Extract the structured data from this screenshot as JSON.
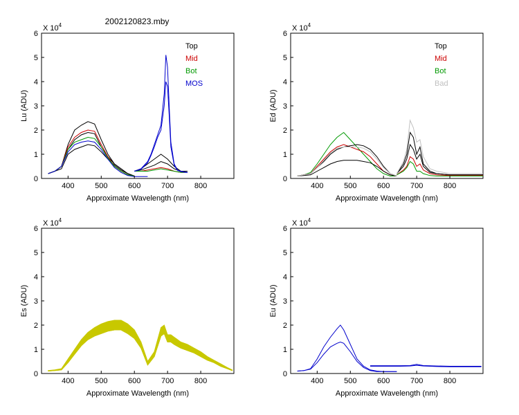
{
  "page_title": "2002120823.mby",
  "chart_data": [
    {
      "id": "lu",
      "type": "line",
      "ylabel": "Lu (ADU)",
      "xlabel": "Approximate Wavelength (nm)",
      "exponent_label": "X 10",
      "exponent_power": "4",
      "xlim": [
        320,
        900
      ],
      "ylim": [
        0,
        6
      ],
      "xticks": [
        400,
        500,
        600,
        700,
        800
      ],
      "yticks": [
        0,
        1,
        2,
        3,
        4,
        5,
        6
      ],
      "legend": [
        {
          "label": "Top",
          "color": "#000000"
        },
        {
          "label": "Mid",
          "color": "#cc0000"
        },
        {
          "label": "Bot",
          "color": "#009900"
        },
        {
          "label": "MOS",
          "color": "#0000cc"
        }
      ],
      "series": [
        {
          "color": "#000000",
          "x": [
            340,
            360,
            380,
            400,
            420,
            440,
            460,
            480,
            500,
            520,
            540,
            560,
            580,
            600
          ],
          "y": [
            0.2,
            0.3,
            0.5,
            1.4,
            2.0,
            2.2,
            2.35,
            2.25,
            1.6,
            1.0,
            0.6,
            0.4,
            0.2,
            0.1
          ]
        },
        {
          "color": "#000000",
          "x": [
            340,
            360,
            380,
            400,
            420,
            440,
            460,
            480,
            500,
            520,
            540,
            560,
            580,
            600
          ],
          "y": [
            0.2,
            0.3,
            0.5,
            1.2,
            1.6,
            1.8,
            1.9,
            1.85,
            1.3,
            0.9,
            0.6,
            0.4,
            0.2,
            0.1
          ]
        },
        {
          "color": "#000000",
          "x": [
            340,
            360,
            380,
            400,
            420,
            440,
            460,
            480,
            500,
            520,
            540,
            560,
            580,
            600
          ],
          "y": [
            0.2,
            0.3,
            0.4,
            1.0,
            1.2,
            1.3,
            1.4,
            1.35,
            1.1,
            0.8,
            0.55,
            0.35,
            0.2,
            0.1
          ]
        },
        {
          "color": "#cc0000",
          "x": [
            340,
            360,
            380,
            400,
            420,
            440,
            460,
            480,
            500,
            520,
            540,
            560,
            580,
            600
          ],
          "y": [
            0.2,
            0.3,
            0.5,
            1.3,
            1.7,
            1.9,
            2.0,
            1.95,
            1.4,
            0.9,
            0.5,
            0.3,
            0.15,
            0.1
          ]
        },
        {
          "color": "#009900",
          "x": [
            340,
            360,
            380,
            400,
            420,
            440,
            460,
            480,
            500,
            520,
            540,
            560,
            580,
            600
          ],
          "y": [
            0.2,
            0.3,
            0.5,
            1.2,
            1.5,
            1.6,
            1.7,
            1.65,
            1.3,
            0.85,
            0.5,
            0.3,
            0.15,
            0.1
          ]
        },
        {
          "color": "#0000cc",
          "x": [
            340,
            360,
            380,
            400,
            420,
            440,
            460,
            480,
            500,
            520,
            540,
            560,
            580,
            600,
            620,
            640
          ],
          "y": [
            0.2,
            0.3,
            0.5,
            1.1,
            1.4,
            1.5,
            1.55,
            1.5,
            1.2,
            0.8,
            0.45,
            0.25,
            0.12,
            0.08,
            0.08,
            0.08
          ]
        },
        {
          "color": "#000000",
          "x": [
            600,
            620,
            640,
            660,
            680,
            700,
            720,
            740,
            760
          ],
          "y": [
            0.3,
            0.4,
            0.6,
            0.8,
            1.0,
            0.8,
            0.5,
            0.3,
            0.3
          ]
        },
        {
          "color": "#000000",
          "x": [
            600,
            620,
            640,
            660,
            680,
            700,
            720,
            740,
            760
          ],
          "y": [
            0.3,
            0.35,
            0.45,
            0.55,
            0.7,
            0.6,
            0.4,
            0.3,
            0.3
          ]
        },
        {
          "color": "#cc0000",
          "x": [
            600,
            620,
            640,
            660,
            680,
            700,
            720,
            740,
            760
          ],
          "y": [
            0.3,
            0.3,
            0.35,
            0.4,
            0.45,
            0.4,
            0.3,
            0.25,
            0.25
          ]
        },
        {
          "color": "#009900",
          "x": [
            600,
            620,
            640,
            660,
            680,
            700,
            720,
            740,
            760
          ],
          "y": [
            0.3,
            0.3,
            0.3,
            0.35,
            0.4,
            0.35,
            0.3,
            0.25,
            0.25
          ]
        },
        {
          "color": "#0000cc",
          "x": [
            600,
            610,
            620,
            640,
            650,
            660,
            670,
            680,
            690,
            695,
            700,
            705,
            710,
            720,
            730,
            740,
            760
          ],
          "y": [
            0.3,
            0.35,
            0.4,
            0.7,
            1.0,
            1.4,
            1.8,
            2.2,
            3.5,
            5.1,
            4.6,
            3.0,
            1.5,
            0.6,
            0.35,
            0.3,
            0.25
          ]
        },
        {
          "color": "#0000cc",
          "x": [
            600,
            610,
            620,
            640,
            650,
            660,
            670,
            680,
            690,
            695,
            700,
            705,
            710,
            720,
            730,
            740,
            760
          ],
          "y": [
            0.3,
            0.33,
            0.38,
            0.65,
            0.95,
            1.3,
            1.7,
            2.0,
            3.0,
            4.0,
            3.8,
            2.6,
            1.3,
            0.55,
            0.33,
            0.28,
            0.24
          ]
        }
      ]
    },
    {
      "id": "ed",
      "type": "line",
      "ylabel": "Ed (ADU)",
      "xlabel": "Approximate Wavelength (nm)",
      "exponent_label": "X 10",
      "exponent_power": "4",
      "xlim": [
        320,
        900
      ],
      "ylim": [
        0,
        6
      ],
      "xticks": [
        400,
        500,
        600,
        700,
        800
      ],
      "yticks": [
        0,
        1,
        2,
        3,
        4,
        5,
        6
      ],
      "legend": [
        {
          "label": "Top",
          "color": "#000000"
        },
        {
          "label": "Mid",
          "color": "#cc0000"
        },
        {
          "label": "Bot",
          "color": "#009900"
        },
        {
          "label": "Bad",
          "color": "#c0c0c0"
        }
      ],
      "series": [
        {
          "color": "#009900",
          "x": [
            340,
            360,
            380,
            400,
            420,
            440,
            460,
            480,
            500,
            520,
            540,
            560,
            580,
            600,
            620,
            640
          ],
          "y": [
            0.1,
            0.15,
            0.25,
            0.6,
            1.0,
            1.4,
            1.7,
            1.9,
            1.6,
            1.3,
            1.0,
            0.7,
            0.4,
            0.2,
            0.1,
            0.1
          ]
        },
        {
          "color": "#cc0000",
          "x": [
            340,
            360,
            380,
            400,
            420,
            440,
            460,
            480,
            500,
            520,
            540,
            560,
            580,
            600,
            620,
            640
          ],
          "y": [
            0.1,
            0.15,
            0.2,
            0.5,
            0.8,
            1.1,
            1.3,
            1.4,
            1.3,
            1.2,
            1.1,
            0.9,
            0.6,
            0.3,
            0.15,
            0.1
          ]
        },
        {
          "color": "#000000",
          "x": [
            340,
            360,
            380,
            400,
            420,
            440,
            460,
            480,
            500,
            520,
            540,
            560,
            580,
            600,
            620,
            640
          ],
          "y": [
            0.1,
            0.15,
            0.2,
            0.45,
            0.7,
            1.0,
            1.2,
            1.3,
            1.35,
            1.4,
            1.35,
            1.2,
            0.9,
            0.5,
            0.2,
            0.1
          ]
        },
        {
          "color": "#000000",
          "x": [
            340,
            360,
            380,
            400,
            420,
            440,
            460,
            480,
            500,
            520,
            540,
            560,
            580,
            600,
            620,
            640
          ],
          "y": [
            0.1,
            0.12,
            0.15,
            0.3,
            0.45,
            0.6,
            0.7,
            0.75,
            0.75,
            0.75,
            0.7,
            0.65,
            0.5,
            0.3,
            0.15,
            0.1
          ]
        },
        {
          "color": "#c0c0c0",
          "x": [
            340,
            360,
            380,
            400,
            420,
            440,
            460,
            480,
            500,
            520,
            540,
            560,
            580,
            600,
            620,
            640
          ],
          "y": [
            0.1,
            0.15,
            0.2,
            0.45,
            0.75,
            1.05,
            1.25,
            1.3,
            1.3,
            1.3,
            1.25,
            1.1,
            0.8,
            0.45,
            0.2,
            0.1
          ]
        },
        {
          "color": "#000000",
          "x": [
            640,
            660,
            670,
            680,
            690,
            700,
            710,
            720,
            740,
            760,
            800,
            900
          ],
          "y": [
            0.2,
            0.6,
            1.0,
            1.9,
            1.7,
            1.0,
            1.3,
            0.6,
            0.3,
            0.2,
            0.15,
            0.15
          ]
        },
        {
          "color": "#000000",
          "x": [
            640,
            660,
            670,
            680,
            690,
            700,
            710,
            720,
            740,
            760,
            800,
            900
          ],
          "y": [
            0.2,
            0.5,
            0.8,
            1.4,
            1.2,
            0.8,
            1.0,
            0.5,
            0.25,
            0.2,
            0.15,
            0.15
          ]
        },
        {
          "color": "#cc0000",
          "x": [
            640,
            660,
            670,
            680,
            690,
            700,
            710,
            720,
            740,
            760,
            800,
            900
          ],
          "y": [
            0.15,
            0.35,
            0.5,
            0.9,
            0.8,
            0.5,
            0.6,
            0.35,
            0.2,
            0.15,
            0.12,
            0.12
          ]
        },
        {
          "color": "#009900",
          "x": [
            640,
            660,
            670,
            680,
            690,
            700,
            710,
            720,
            740,
            760,
            800,
            900
          ],
          "y": [
            0.15,
            0.3,
            0.45,
            0.7,
            0.6,
            0.3,
            0.3,
            0.2,
            0.12,
            0.1,
            0.1,
            0.1
          ]
        },
        {
          "color": "#c0c0c0",
          "x": [
            640,
            660,
            670,
            680,
            690,
            700,
            710,
            720,
            740,
            760,
            800,
            900
          ],
          "y": [
            0.2,
            0.7,
            1.2,
            2.4,
            2.1,
            1.5,
            1.6,
            0.9,
            0.4,
            0.3,
            0.2,
            0.2
          ]
        }
      ]
    },
    {
      "id": "es",
      "type": "area",
      "ylabel": "Es (ADU)",
      "xlabel": "Approximate Wavelength (nm)",
      "exponent_label": "X 10",
      "exponent_power": "4",
      "xlim": [
        320,
        900
      ],
      "ylim": [
        0,
        6
      ],
      "xticks": [
        400,
        500,
        600,
        700,
        800
      ],
      "yticks": [
        0,
        1,
        2,
        3,
        4,
        5,
        6
      ],
      "legend": [],
      "series": [
        {
          "color": "#c8c800",
          "x": [
            340,
            360,
            380,
            400,
            420,
            440,
            460,
            480,
            500,
            520,
            540,
            560,
            580,
            600,
            620,
            640,
            660,
            680,
            690,
            700,
            710,
            720,
            740,
            760,
            780,
            800,
            820,
            840,
            860,
            880,
            895
          ],
          "y": [
            0.12,
            0.15,
            0.2,
            0.6,
            1.0,
            1.4,
            1.7,
            1.9,
            2.05,
            2.15,
            2.2,
            2.2,
            2.05,
            1.8,
            1.3,
            0.5,
            0.9,
            1.9,
            2.0,
            1.6,
            1.6,
            1.5,
            1.3,
            1.2,
            1.05,
            0.9,
            0.7,
            0.55,
            0.4,
            0.25,
            0.15
          ]
        },
        {
          "color": "#c8c800",
          "x": [
            340,
            360,
            380,
            400,
            420,
            440,
            460,
            480,
            500,
            520,
            540,
            560,
            580,
            600,
            620,
            640,
            660,
            680,
            690,
            700,
            710,
            720,
            740,
            760,
            780,
            800,
            820,
            840,
            860,
            880,
            895
          ],
          "y": [
            0.1,
            0.12,
            0.15,
            0.45,
            0.8,
            1.15,
            1.4,
            1.55,
            1.65,
            1.75,
            1.8,
            1.8,
            1.65,
            1.45,
            1.05,
            0.35,
            0.7,
            1.55,
            1.65,
            1.3,
            1.3,
            1.2,
            1.05,
            0.95,
            0.85,
            0.7,
            0.55,
            0.45,
            0.3,
            0.2,
            0.12
          ]
        }
      ]
    },
    {
      "id": "eu",
      "type": "line",
      "ylabel": "Eu (ADU)",
      "xlabel": "Approximate Wavelength (nm)",
      "exponent_label": "X 10",
      "exponent_power": "4",
      "xlim": [
        320,
        900
      ],
      "ylim": [
        0,
        6
      ],
      "xticks": [
        400,
        500,
        600,
        700,
        800
      ],
      "yticks": [
        0,
        1,
        2,
        3,
        4,
        5,
        6
      ],
      "legend": [],
      "series": [
        {
          "color": "#0000cc",
          "x": [
            340,
            360,
            380,
            400,
            420,
            440,
            460,
            470,
            480,
            500,
            520,
            540,
            560,
            580,
            600,
            620,
            640
          ],
          "y": [
            0.1,
            0.12,
            0.2,
            0.6,
            1.1,
            1.5,
            1.85,
            2.0,
            1.8,
            1.2,
            0.6,
            0.3,
            0.15,
            0.1,
            0.08,
            0.08,
            0.08
          ]
        },
        {
          "color": "#0000cc",
          "x": [
            340,
            360,
            380,
            400,
            420,
            440,
            460,
            470,
            480,
            500,
            520,
            540,
            560,
            580,
            600,
            620,
            640
          ],
          "y": [
            0.1,
            0.12,
            0.18,
            0.45,
            0.8,
            1.1,
            1.25,
            1.3,
            1.25,
            0.9,
            0.5,
            0.25,
            0.12,
            0.08,
            0.08,
            0.08,
            0.08
          ]
        },
        {
          "color": "#0000cc",
          "x": [
            560,
            600,
            650,
            680,
            700,
            720,
            760,
            800,
            850,
            895
          ],
          "y": [
            0.32,
            0.32,
            0.32,
            0.33,
            0.38,
            0.33,
            0.31,
            0.3,
            0.3,
            0.3
          ]
        },
        {
          "color": "#0000cc",
          "x": [
            560,
            600,
            650,
            680,
            700,
            720,
            760,
            800,
            850,
            895
          ],
          "y": [
            0.3,
            0.3,
            0.3,
            0.31,
            0.34,
            0.31,
            0.29,
            0.28,
            0.28,
            0.28
          ]
        }
      ]
    }
  ]
}
